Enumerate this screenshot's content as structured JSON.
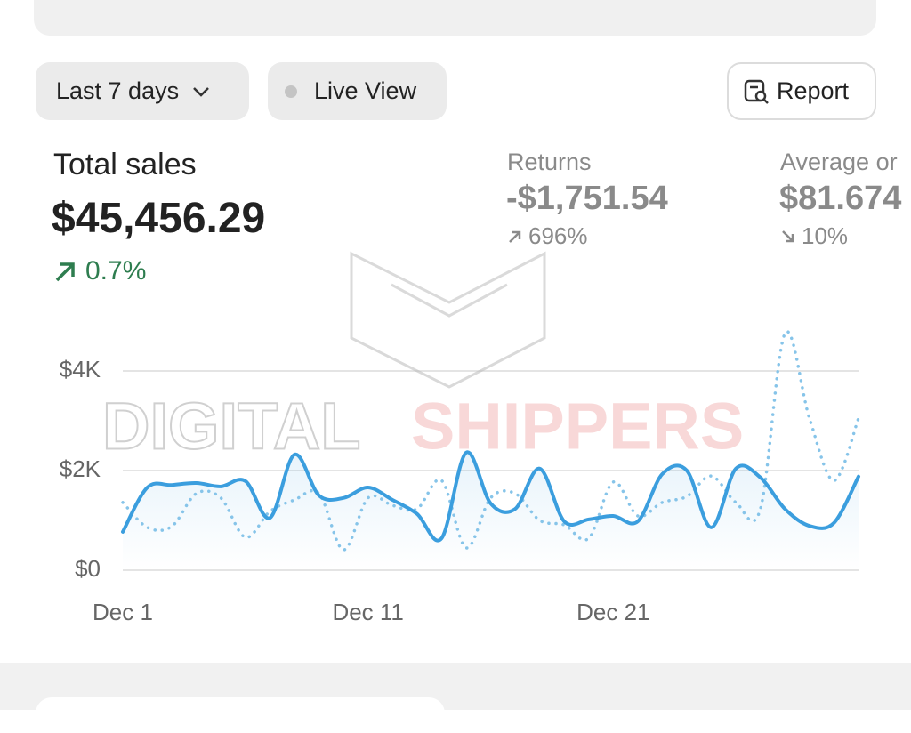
{
  "toolbar": {
    "date_range": "Last 7 days",
    "live_view": "Live View",
    "report": "Report"
  },
  "metrics": [
    {
      "label": "Total sales",
      "value": "$45,456.29",
      "change": "0.7%"
    },
    {
      "label": "Returns",
      "value": "-$1,751.54",
      "change": "696%"
    },
    {
      "label": "Average or",
      "value": "$81.674",
      "change": "10%"
    }
  ],
  "watermark": [
    "DIGITAL",
    "SHIPPERS"
  ],
  "chart_data": {
    "type": "line",
    "categories": [
      "Dec 1",
      null,
      null,
      null,
      null,
      null,
      null,
      null,
      null,
      null,
      "Dec 11",
      null,
      null,
      null,
      null,
      null,
      null,
      null,
      null,
      null,
      "Dec 21",
      null,
      null,
      null,
      null,
      null,
      null,
      null,
      null,
      null,
      null
    ],
    "series": [
      {
        "color": "#3b9ede",
        "line_style": "solid",
        "values": [
          770,
          1660,
          1710,
          1750,
          1680,
          1790,
          1050,
          2320,
          1500,
          1450,
          1660,
          1410,
          1130,
          640,
          2360,
          1340,
          1230,
          2040,
          980,
          1020,
          1090,
          980,
          1930,
          2000,
          860,
          2040,
          1860,
          1230,
          890,
          950,
          1880
        ]
      },
      {
        "color": "#86c4e9",
        "line_style": "dotted",
        "values": [
          1360,
          860,
          880,
          1540,
          1450,
          660,
          1180,
          1410,
          1540,
          410,
          1450,
          1300,
          1230,
          1800,
          450,
          1450,
          1540,
          1000,
          910,
          640,
          1770,
          1090,
          1360,
          1480,
          1890,
          1360,
          1230,
          4750,
          3050,
          1800,
          3050
        ]
      }
    ],
    "ylim": [
      0,
      4000
    ],
    "yticks": [
      {
        "value": 0,
        "label": "$0"
      },
      {
        "value": 2000,
        "label": "$2K"
      },
      {
        "value": 4000,
        "label": "$4K"
      }
    ],
    "grid": true
  }
}
